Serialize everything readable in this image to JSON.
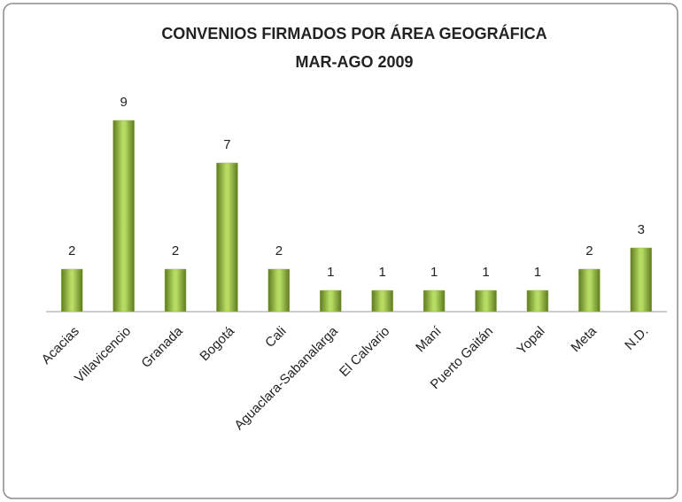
{
  "chart_data": {
    "type": "bar",
    "title": "CONVENIOS FIRMADOS POR ÁREA GEOGRÁFICA",
    "subtitle": "MAR-AGO 2009",
    "categories": [
      "Acacias",
      "Villavicencio",
      "Granada",
      "Bogotá",
      "Cali",
      "Aguaclara-Sabanalarga",
      "El Calvario",
      "Maní",
      "Puerto Gaitán",
      "Yopal",
      "Meta",
      "N.D."
    ],
    "values": [
      2,
      9,
      2,
      7,
      2,
      1,
      1,
      1,
      1,
      1,
      2,
      3
    ],
    "color": "#9bbb59"
  }
}
